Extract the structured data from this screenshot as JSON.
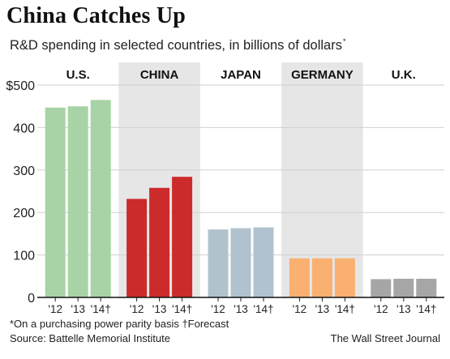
{
  "chart_data": {
    "type": "bar",
    "title": "China Catches Up",
    "subtitle": "R&D spending in selected countries, in billions of dollars",
    "subtitle_mark": "*",
    "groups": [
      {
        "name": "U.S.",
        "highlight": false,
        "color": "#a8d3a6",
        "values": [
          447,
          450,
          465
        ]
      },
      {
        "name": "CHINA",
        "highlight": true,
        "color": "#cc2b2b",
        "values": [
          232,
          258,
          284
        ]
      },
      {
        "name": "JAPAN",
        "highlight": false,
        "color": "#b0c2cd",
        "values": [
          160,
          163,
          165
        ]
      },
      {
        "name": "GERMANY",
        "highlight": true,
        "color": "#f9b070",
        "values": [
          92,
          92,
          92
        ]
      },
      {
        "name": "U.K.",
        "highlight": false,
        "color": "#a6a6a6",
        "values": [
          43,
          44,
          44
        ]
      }
    ],
    "categories": [
      "'12",
      "'13",
      "'14†"
    ],
    "y_ticks": [
      "$500",
      "400",
      "300",
      "200",
      "100",
      "0"
    ],
    "ylim": [
      0,
      500
    ],
    "band_color": "#e6e6e6",
    "grid": true,
    "grid_color": "#cfcfcf"
  },
  "footnote": "*On a purchasing power parity basis  †Forecast",
  "source": "Source: Battelle Memorial Institute",
  "credit": "The Wall Street Journal"
}
